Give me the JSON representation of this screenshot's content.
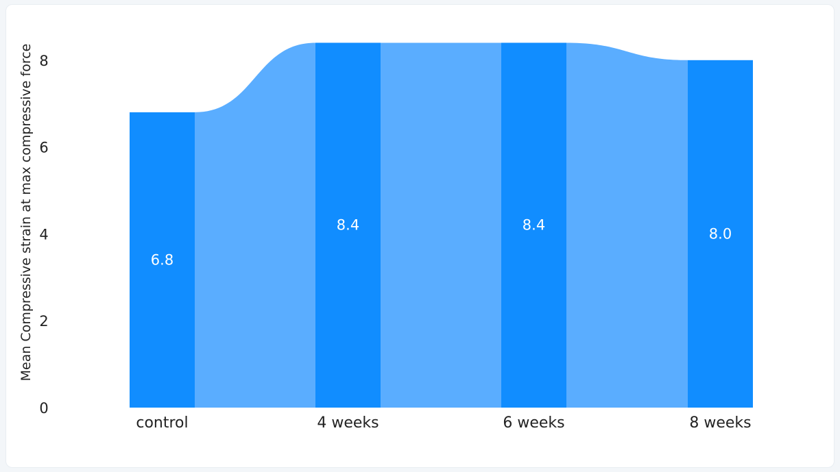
{
  "chart_data": {
    "type": "bar",
    "categories": [
      "control",
      "4 weeks",
      "6 weeks",
      "8 weeks"
    ],
    "values": [
      6.8,
      8.4,
      8.4,
      8.0
    ],
    "value_labels": [
      "6.8",
      "8.4",
      "8.4",
      "8.0"
    ],
    "ylabel": "Mean Compressive strain at max compressive force",
    "xlabel": "",
    "title": "",
    "ylim": [
      0,
      8.5
    ],
    "yticks": [
      0,
      2,
      4,
      6,
      8
    ],
    "grid": false,
    "legend": "none",
    "colors": {
      "bar": "#118dff",
      "ribbon": "#5aadff",
      "label_inside": "#ffffff",
      "axis_text": "#222222"
    }
  }
}
